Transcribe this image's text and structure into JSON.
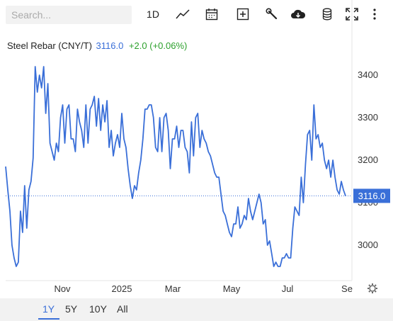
{
  "search": {
    "placeholder": "Search..."
  },
  "toolbar": {
    "interval_label": "1D",
    "icons": [
      "line-chart-icon",
      "calendar-icon",
      "add-icon",
      "wrench-icon",
      "cloud-download-icon",
      "database-icon",
      "fullscreen-icon",
      "more-icon"
    ]
  },
  "title": {
    "name": "Steel Rebar (CNY/T)",
    "price": "3116.0",
    "change": "+2.0 (+0.06%)"
  },
  "colors": {
    "line": "#3a6fd8",
    "change_positive": "#2ca02c",
    "last_price_tag": "#3a6fd8"
  },
  "chart_data": {
    "type": "line",
    "x_tick_labels": [
      "Nov",
      "2025",
      "Mar",
      "May",
      "Jul",
      "Se"
    ],
    "y_tick_labels": [
      "3000",
      "3100",
      "3200",
      "3300",
      "3400"
    ],
    "ylim": [
      2940,
      3460
    ],
    "last_price_label": "3116.0",
    "grid": false,
    "series": [
      {
        "values": [
          3185,
          3130,
          3080,
          3000,
          2970,
          2950,
          2960,
          3080,
          3030,
          3140,
          3040,
          3130,
          3150,
          3205,
          3420,
          3360,
          3400,
          3370,
          3420,
          3310,
          3380,
          3240,
          3220,
          3200,
          3240,
          3220,
          3300,
          3330,
          3240,
          3320,
          3330,
          3250,
          3250,
          3220,
          3320,
          3290,
          3270,
          3230,
          3330,
          3240,
          3320,
          3330,
          3350,
          3280,
          3345,
          3270,
          3330,
          3290,
          3340,
          3230,
          3270,
          3210,
          3240,
          3260,
          3230,
          3310,
          3250,
          3230,
          3180,
          3140,
          3110,
          3140,
          3130,
          3170,
          3200,
          3250,
          3320,
          3320,
          3330,
          3330,
          3300,
          3230,
          3220,
          3300,
          3220,
          3300,
          3310,
          3270,
          3180,
          3250,
          3250,
          3280,
          3230,
          3270,
          3270,
          3230,
          3220,
          3170,
          3290,
          3210,
          3300,
          3310,
          3230,
          3270,
          3250,
          3240,
          3220,
          3210,
          3190,
          3170,
          3160,
          3160,
          3120,
          3080,
          3070,
          3050,
          3030,
          3020,
          3050,
          3050,
          3090,
          3040,
          3050,
          3070,
          3060,
          3110,
          3080,
          3060,
          3080,
          3100,
          3120,
          3100,
          3050,
          3060,
          3000,
          3010,
          2980,
          2950,
          2960,
          2950,
          2950,
          2970,
          2970,
          2980,
          2970,
          2970,
          3040,
          3090,
          3080,
          3070,
          3160,
          3100,
          3190,
          3260,
          3270,
          3200,
          3330,
          3250,
          3260,
          3230,
          3240,
          3200,
          3180,
          3200,
          3160,
          3200,
          3160,
          3130,
          3120,
          3150,
          3130,
          3116
        ]
      }
    ]
  },
  "range": {
    "buttons": [
      "1Y",
      "5Y",
      "10Y",
      "All"
    ],
    "active": "1Y"
  }
}
